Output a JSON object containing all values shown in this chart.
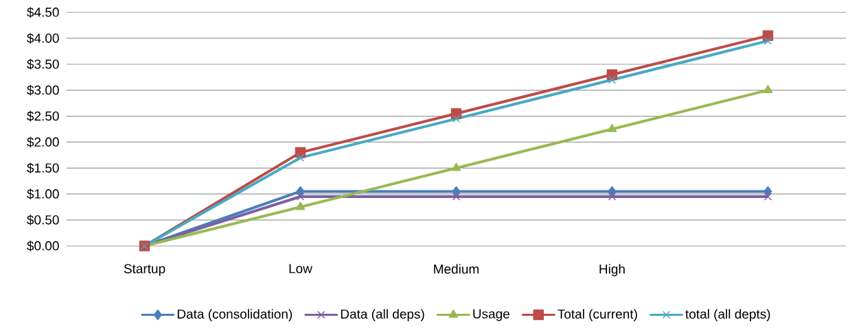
{
  "chart_data": {
    "type": "line",
    "categories": [
      "Startup",
      "Low",
      "Medium",
      "High",
      null
    ],
    "series": [
      {
        "name": "Data (consolidation)",
        "color": "#4a7ebb",
        "marker": "diamond",
        "values": [
          0,
          1.05,
          1.05,
          1.05,
          1.05
        ]
      },
      {
        "name": "Data (all deps)",
        "color": "#7d60a0",
        "marker": "cross",
        "values": [
          0,
          0.95,
          0.95,
          0.95,
          0.95
        ]
      },
      {
        "name": "Usage",
        "color": "#98b954",
        "marker": "triangle",
        "values": [
          0,
          0.75,
          1.5,
          2.25,
          3.0
        ]
      },
      {
        "name": "Total (current)",
        "color": "#be4b48",
        "marker": "square",
        "values": [
          0,
          1.8,
          2.55,
          3.3,
          4.05
        ]
      },
      {
        "name": "total (all depts)",
        "color": "#46aac5",
        "marker": "cross",
        "values": [
          0,
          1.7,
          2.45,
          3.2,
          3.95
        ]
      }
    ],
    "ylim": [
      0,
      4.5
    ],
    "yticks": [
      {
        "value": 0,
        "label": "$0.00"
      },
      {
        "value": 0.5,
        "label": "$0.50"
      },
      {
        "value": 1,
        "label": "$1.00"
      },
      {
        "value": 1.5,
        "label": "$1.50"
      },
      {
        "value": 2,
        "label": "$2.00"
      },
      {
        "value": 2.5,
        "label": "$2.50"
      },
      {
        "value": 3,
        "label": "$3.00"
      },
      {
        "value": 3.5,
        "label": "$3.50"
      },
      {
        "value": 4,
        "label": "$4.00"
      },
      {
        "value": 4.5,
        "label": "$4.50"
      }
    ],
    "grid": "y",
    "legend": "bottom",
    "line_style": "solid"
  }
}
